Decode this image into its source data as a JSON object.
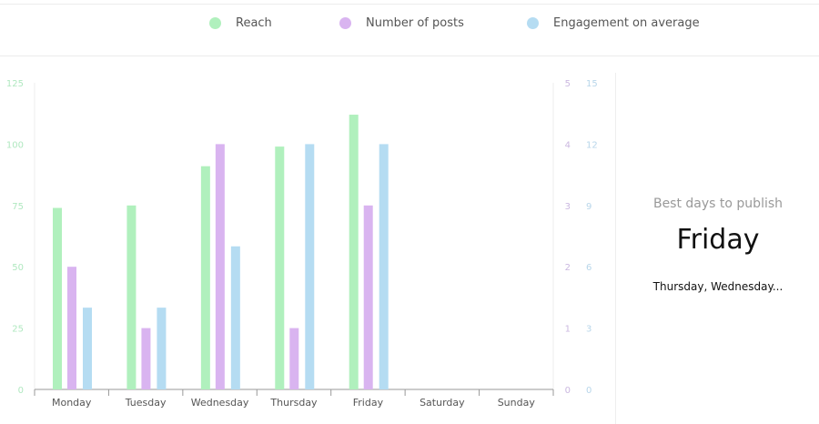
{
  "colors": {
    "reach": "#b0f0bd",
    "posts": "#d9b4f0",
    "engagement": "#b5dcf2"
  },
  "chart_data": {
    "type": "bar",
    "categories": [
      "Monday",
      "Tuesday",
      "Wednesday",
      "Thursday",
      "Friday",
      "Saturday",
      "Sunday"
    ],
    "series": [
      {
        "name": "Reach",
        "axis": "left",
        "values": [
          74,
          75,
          91,
          99,
          112,
          null,
          null
        ]
      },
      {
        "name": "Number of posts",
        "axis": "right1",
        "values": [
          2,
          1,
          4,
          1,
          3,
          null,
          null
        ]
      },
      {
        "name": "Engagement on average",
        "axis": "right2",
        "values": [
          4,
          4,
          7,
          12,
          12,
          null,
          null
        ]
      }
    ],
    "axes": {
      "left": {
        "ylim": [
          0,
          125
        ],
        "ticks": [
          "0",
          "25",
          "50",
          "75",
          "100",
          "125"
        ]
      },
      "right1": {
        "ylim": [
          0,
          5
        ],
        "ticks": [
          "0",
          "1",
          "2",
          "3",
          "4",
          "5"
        ]
      },
      "right2": {
        "ylim": [
          0,
          15
        ],
        "ticks": [
          "0",
          "3",
          "6",
          "9",
          "12",
          "15"
        ]
      }
    },
    "legend": "top",
    "grid": false
  },
  "panel": {
    "subtitle": "Best days to publish",
    "best_day": "Friday",
    "others": "Thursday, Wednesday..."
  }
}
